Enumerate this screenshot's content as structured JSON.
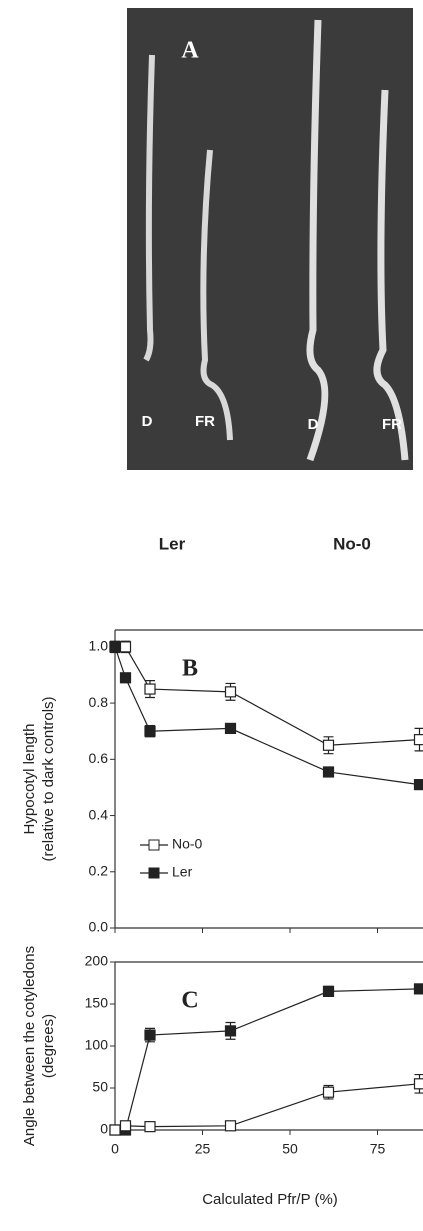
{
  "panel_a": {
    "label": "A",
    "seedling_labels": [
      "D",
      "FR",
      "D",
      "FR"
    ],
    "genotypes": [
      "Ler",
      "No-0"
    ]
  },
  "chart_data": [
    {
      "type": "line",
      "panel_label": "B",
      "y_label": [
        "Hypocotyl length",
        "(relative to dark controls)"
      ],
      "x": [
        0,
        3,
        10,
        33,
        61,
        87
      ],
      "series": [
        {
          "name": "No-0",
          "color": "#222222",
          "marker": "open",
          "values": [
            1.0,
            1.0,
            0.85,
            0.84,
            0.65,
            0.67
          ],
          "errors": [
            0.02,
            0.02,
            0.03,
            0.03,
            0.03,
            0.04
          ]
        },
        {
          "name": "Ler",
          "color": "#222222",
          "marker": "filled",
          "values": [
            1.0,
            0.89,
            0.7,
            0.71,
            0.555,
            0.51
          ],
          "errors": [
            0.01,
            0.01,
            0.02,
            0.01,
            0.01,
            0.01
          ]
        }
      ],
      "xlim": [
        0,
        88
      ],
      "xticks": [
        0,
        25,
        50,
        75
      ],
      "show_xtick_labels": false,
      "ylim": [
        0,
        1.06
      ],
      "yticks": [
        {
          "value": 0,
          "label": "0.0"
        },
        0.2,
        0.4,
        0.6,
        0.8,
        {
          "value": 1,
          "label": "1.0"
        }
      ],
      "legend": "lower-left"
    },
    {
      "type": "line",
      "panel_label": "C",
      "y_label": [
        "Angle between the cotyledons",
        "(degrees)"
      ],
      "x_label": "Calculated Pfr/P (%)",
      "x": [
        0,
        3,
        10,
        33,
        61,
        87
      ],
      "series": [
        {
          "name": "Ler",
          "color": "#222222",
          "marker": "filled",
          "values": [
            0,
            0,
            113,
            118,
            165,
            168
          ],
          "errors": [
            0,
            0,
            8,
            10,
            6,
            3
          ]
        },
        {
          "name": "No-0",
          "color": "#222222",
          "marker": "open",
          "values": [
            0,
            5,
            4,
            5,
            45,
            55
          ],
          "errors": [
            0,
            3,
            2,
            2,
            8,
            11
          ]
        }
      ],
      "xlim": [
        0,
        88
      ],
      "xticks": [
        0,
        25,
        50,
        75
      ],
      "show_xtick_labels": true,
      "ylim": [
        0,
        200
      ],
      "yticks": [
        0,
        50,
        100,
        150,
        200
      ]
    }
  ]
}
